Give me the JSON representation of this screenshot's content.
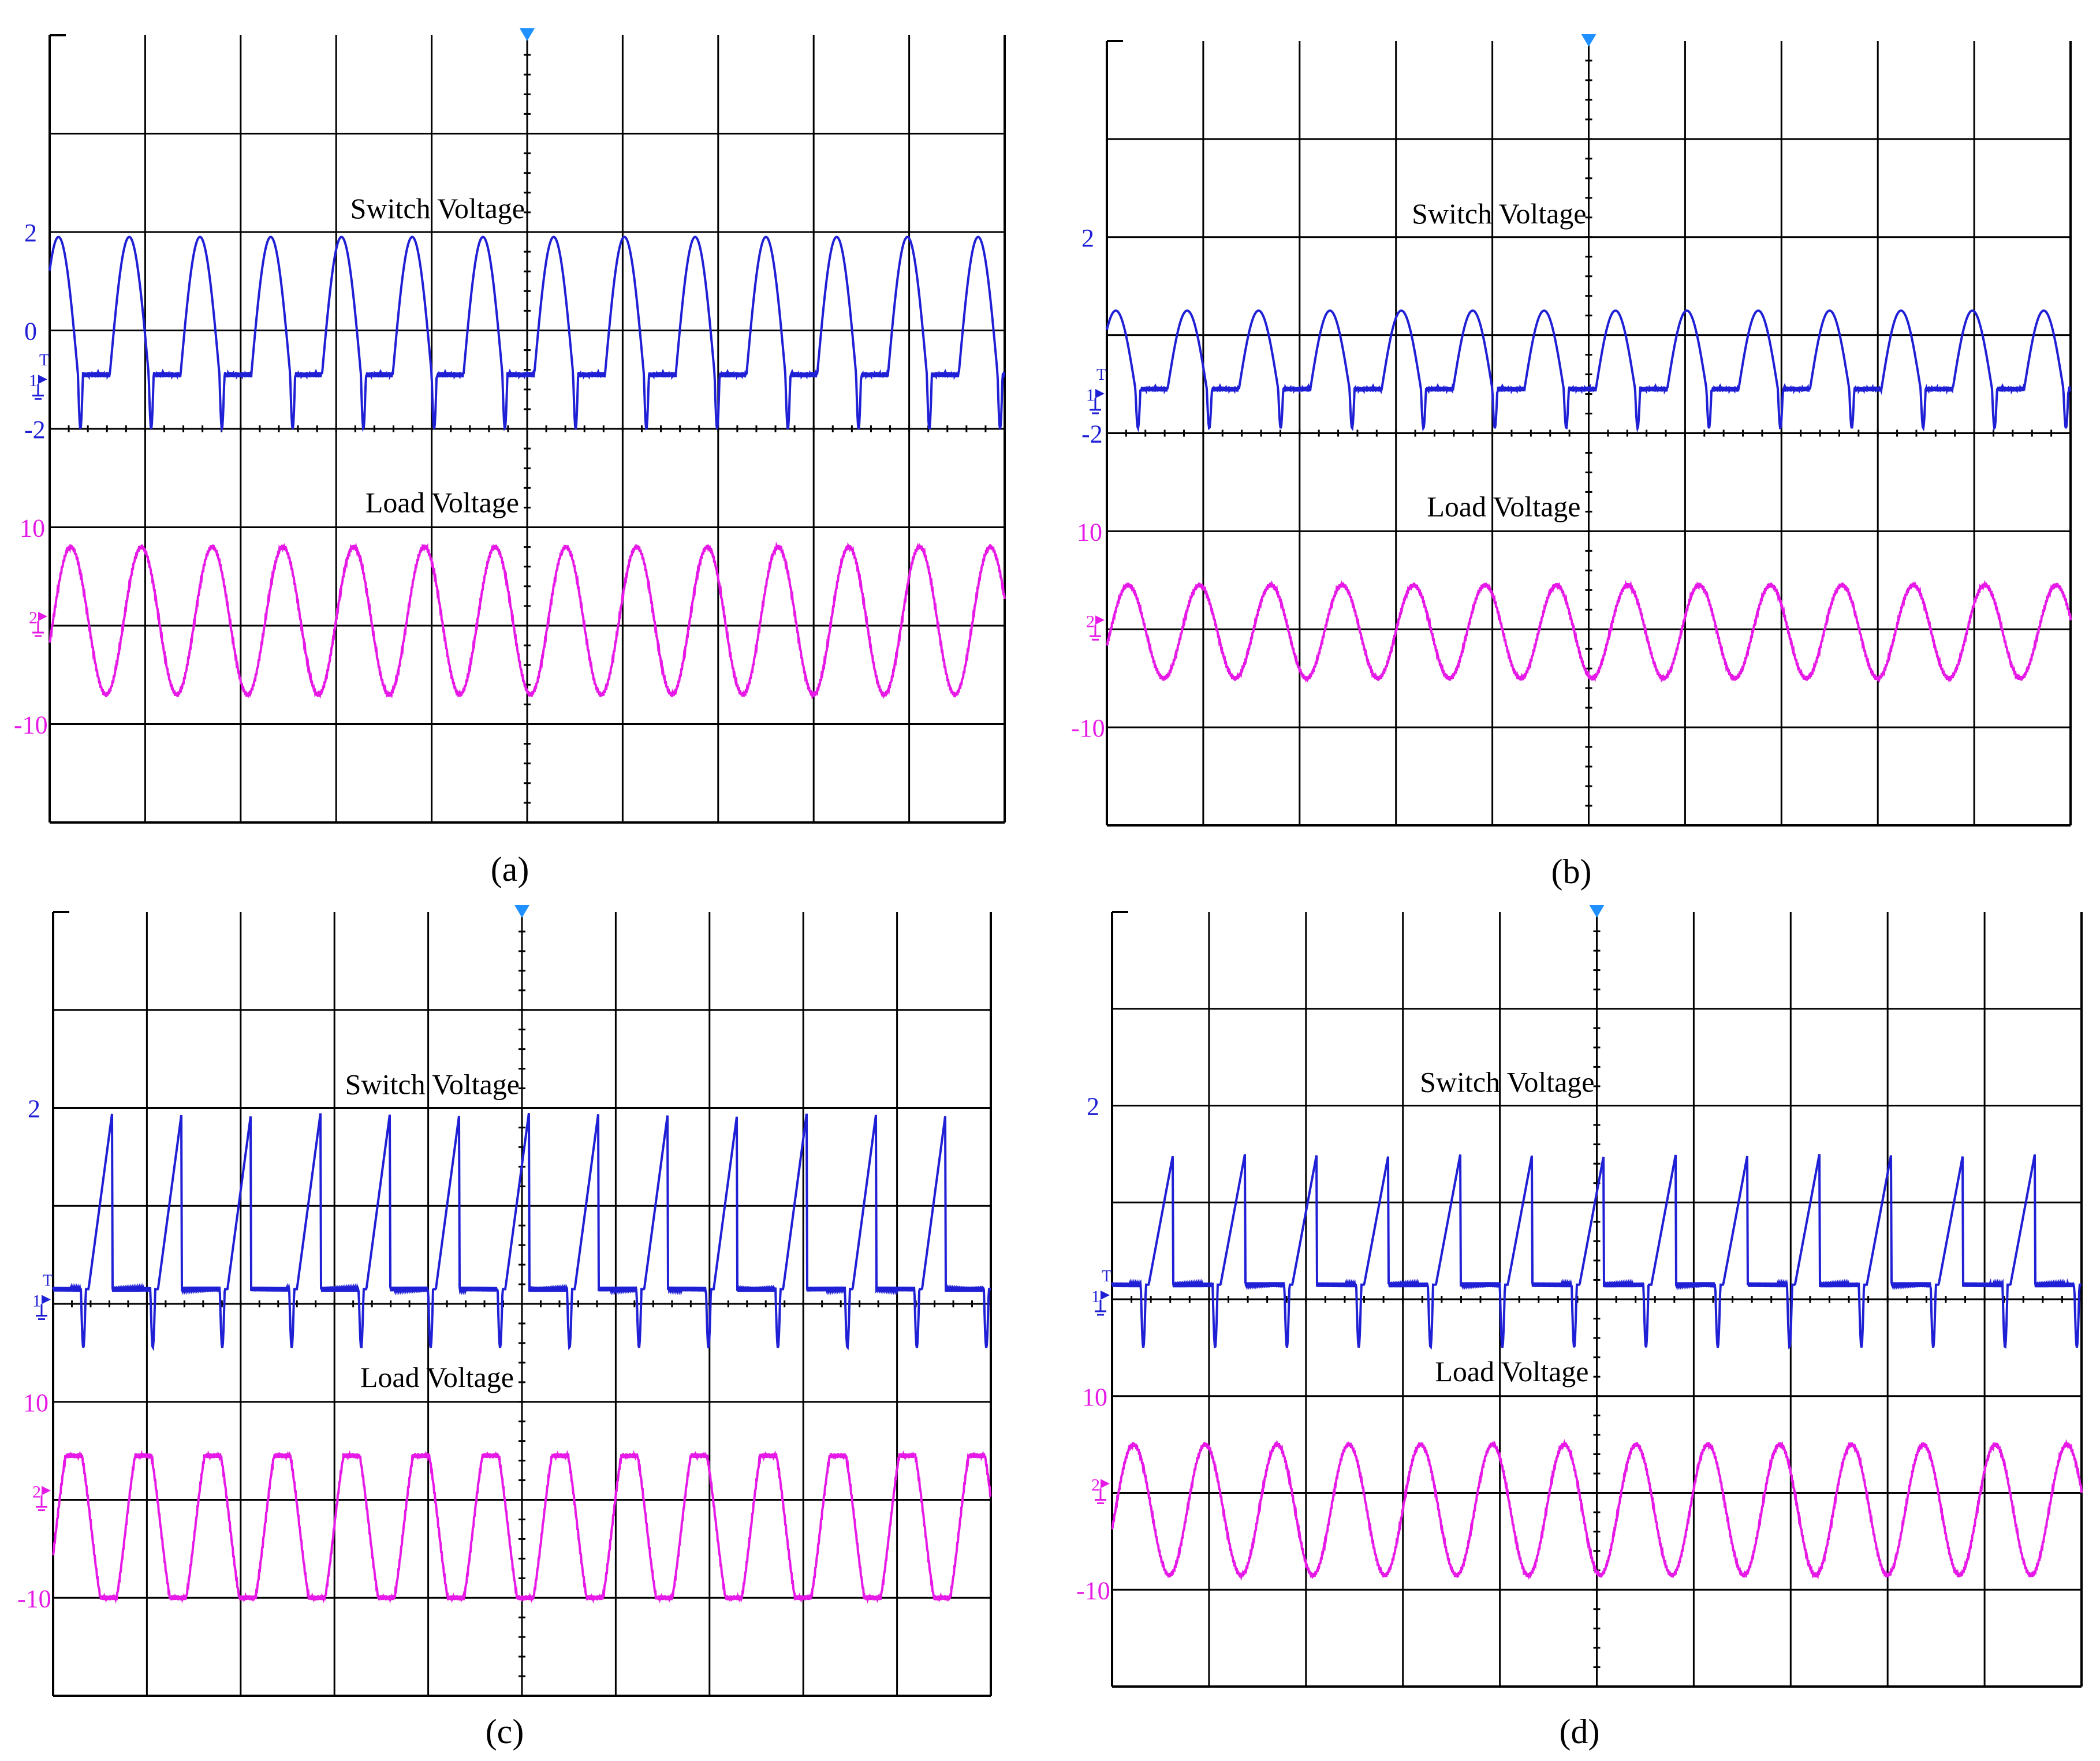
{
  "panel_labels": [
    "(a)",
    "(b)",
    "(c)",
    "(d)"
  ],
  "channel_markers": {
    "trigger": "T",
    "ch1": "1",
    "ch2": "2"
  },
  "colors": {
    "switch_voltage": "#1f1fd6",
    "load_voltage": "#e619e6",
    "grid": "#000000",
    "trigger_marker": "#1e90ff"
  },
  "chart_data": [
    {
      "type": "line",
      "panel": "(a)",
      "grid": true,
      "grid_divisions": {
        "x": 10,
        "y": 8
      },
      "series": [
        {
          "name": "Switch Voltage",
          "color": "#1f1fd6",
          "tick_labels": [
            "2",
            "0",
            "-2"
          ],
          "ylim": [
            -2,
            2
          ],
          "cycles": 13.5,
          "waveform": "half-sine pulse then flat plateau",
          "peak": 1.9,
          "plateau": -0.9,
          "trough": -2.0
        },
        {
          "name": "Load Voltage",
          "color": "#e619e6",
          "tick_labels": [
            "10",
            "-10"
          ],
          "ylim": [
            -10,
            10
          ],
          "cycles": 13.5,
          "waveform": "quasi-sine",
          "max": 8.0,
          "min": -7.0
        }
      ]
    },
    {
      "type": "line",
      "panel": "(b)",
      "grid": true,
      "grid_divisions": {
        "x": 10,
        "y": 8
      },
      "series": [
        {
          "name": "Switch Voltage",
          "color": "#1f1fd6",
          "tick_labels": [
            "2",
            "-2"
          ],
          "ylim": [
            -2,
            2
          ],
          "cycles": 13.5,
          "waveform": "half-sine pulse then flat plateau",
          "peak": 0.5,
          "plateau": -1.1,
          "trough": -1.9
        },
        {
          "name": "Load Voltage",
          "color": "#e619e6",
          "tick_labels": [
            "10",
            "-10"
          ],
          "ylim": [
            -10,
            10
          ],
          "cycles": 13.5,
          "waveform": "quasi-sine",
          "max": 4.5,
          "min": -5.0
        }
      ]
    },
    {
      "type": "line",
      "panel": "(c)",
      "grid": true,
      "grid_divisions": {
        "x": 10,
        "y": 8
      },
      "series": [
        {
          "name": "Switch Voltage",
          "color": "#1f1fd6",
          "tick_labels": [
            "2"
          ],
          "ylim": [
            -2,
            2
          ],
          "cycles": 13.5,
          "waveform": "sawtooth ramp with negative spike",
          "peak": 1.9,
          "plateau": -1.7,
          "trough": -2.9
        },
        {
          "name": "Load Voltage",
          "color": "#e619e6",
          "tick_labels": [
            "10",
            "-10"
          ],
          "ylim": [
            -10,
            10
          ],
          "cycles": 13.5,
          "waveform": "flat-top quasi-sine",
          "max": 4.5,
          "min": -10.0
        }
      ]
    },
    {
      "type": "line",
      "panel": "(d)",
      "grid": true,
      "grid_divisions": {
        "x": 10,
        "y": 8
      },
      "series": [
        {
          "name": "Switch Voltage",
          "color": "#1f1fd6",
          "tick_labels": [
            "2"
          ],
          "ylim": [
            -2,
            2
          ],
          "cycles": 13.5,
          "waveform": "sawtooth ramp with negative spike",
          "peak": 1.0,
          "plateau": -1.7,
          "trough": -3.0
        },
        {
          "name": "Load Voltage",
          "color": "#e619e6",
          "tick_labels": [
            "10",
            "-10"
          ],
          "ylim": [
            -10,
            10
          ],
          "cycles": 13.5,
          "waveform": "quasi-sine",
          "max": 5.0,
          "min": -8.5
        }
      ]
    }
  ]
}
